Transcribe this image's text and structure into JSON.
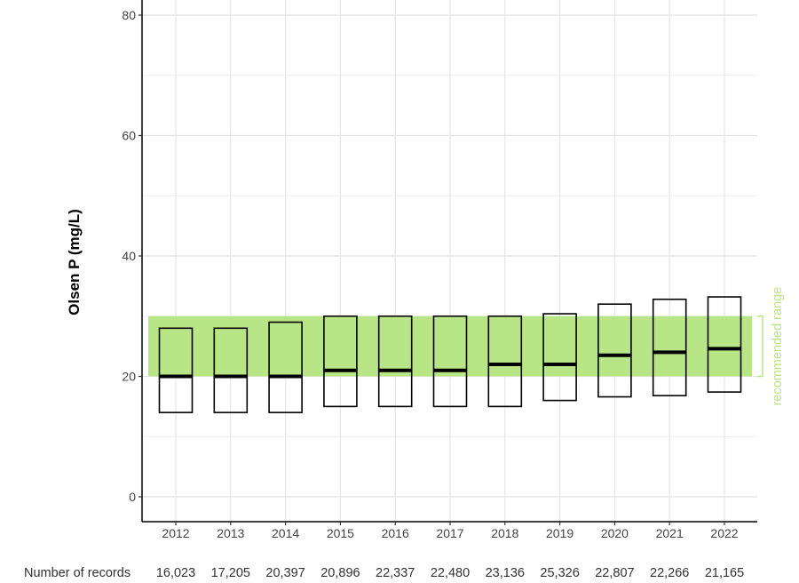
{
  "chart_data": {
    "type": "box",
    "ylabel": "Olsen P (mg/L)",
    "ylim": [
      0,
      80
    ],
    "yticks": [
      0,
      20,
      40,
      60,
      80
    ],
    "categories": [
      "2012",
      "2013",
      "2014",
      "2015",
      "2016",
      "2017",
      "2018",
      "2019",
      "2020",
      "2021",
      "2022"
    ],
    "boxes": [
      {
        "q1": 14,
        "median": 20,
        "q3": 28
      },
      {
        "q1": 14,
        "median": 20,
        "q3": 28
      },
      {
        "q1": 14,
        "median": 20,
        "q3": 29
      },
      {
        "q1": 15,
        "median": 21,
        "q3": 30
      },
      {
        "q1": 15,
        "median": 21,
        "q3": 30
      },
      {
        "q1": 15,
        "median": 21,
        "q3": 30
      },
      {
        "q1": 15,
        "median": 22,
        "q3": 30
      },
      {
        "q1": 16,
        "median": 22,
        "q3": 30.4
      },
      {
        "q1": 16.6,
        "median": 23.5,
        "q3": 32
      },
      {
        "q1": 16.8,
        "median": 24,
        "q3": 32.8
      },
      {
        "q1": 17.4,
        "median": 24.6,
        "q3": 33.2
      }
    ],
    "recommended_range": {
      "low": 20,
      "high": 30,
      "label": "recommended range",
      "color": "#b8e586"
    },
    "records_label": "Number of records",
    "records": [
      "16,023",
      "17,205",
      "20,397",
      "20,896",
      "22,337",
      "22,480",
      "23,136",
      "25,326",
      "22,807",
      "22,266",
      "21,165"
    ],
    "grid": true
  }
}
